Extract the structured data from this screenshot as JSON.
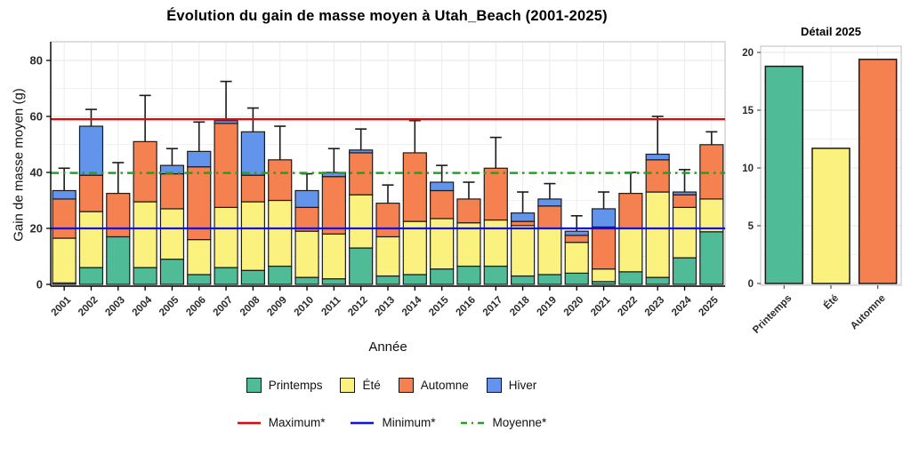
{
  "main": {
    "title": "Évolution du gain de masse moyen à Utah_Beach (2001-2025)",
    "x_label": "Année",
    "y_label": "Gain de masse moyen (g)"
  },
  "detail": {
    "title": "Détail 2025"
  },
  "legend": {
    "seasons": [
      {
        "label": "Printemps",
        "color": "#4FBB97"
      },
      {
        "label": "Été",
        "color": "#FBF17E"
      },
      {
        "label": "Automne",
        "color": "#F4814F"
      },
      {
        "label": "Hiver",
        "color": "#6394EB"
      }
    ],
    "lines": [
      {
        "label": "Maximum*",
        "color": "#F40000",
        "dash": ""
      },
      {
        "label": "Minimum*",
        "color": "#0F0FEF",
        "dash": ""
      },
      {
        "label": "Moyenne*",
        "color": "#1FA41F",
        "dash": "7 5 2 5"
      }
    ]
  },
  "chart_data": [
    {
      "type": "bar",
      "stacked": true,
      "title": "Évolution du gain de masse moyen à Utah_Beach (2001-2025)",
      "xlabel": "Année",
      "ylabel": "Gain de masse moyen (g)",
      "ylim": [
        0,
        87
      ],
      "yticks": [
        0,
        20,
        40,
        60,
        80
      ],
      "yticks_minor": [
        10,
        30,
        50,
        70
      ],
      "categories": [
        "2001",
        "2002",
        "2003",
        "2004",
        "2005",
        "2006",
        "2007",
        "2008",
        "2009",
        "2010",
        "2011",
        "2012",
        "2013",
        "2014",
        "2015",
        "2016",
        "2017",
        "2018",
        "2019",
        "2020",
        "2021",
        "2022",
        "2023",
        "2024",
        "2025"
      ],
      "series": [
        {
          "name": "Printemps",
          "color": "#4FBB97",
          "values": [
            0.5,
            6,
            17,
            6,
            9,
            3.5,
            6,
            5,
            6.5,
            2.5,
            2,
            13,
            3,
            3.5,
            5.5,
            6.5,
            6.5,
            3,
            3.5,
            4,
            1,
            4.5,
            2.5,
            9.5,
            18.8
          ]
        },
        {
          "name": "Été",
          "color": "#FBF17E",
          "values": [
            16,
            20,
            0,
            23.5,
            18,
            12.5,
            21.5,
            24.5,
            23.5,
            16.5,
            16,
            19,
            14,
            19,
            18,
            15.5,
            16.5,
            18,
            16.5,
            11,
            4.5,
            15.5,
            30.5,
            18,
            11.7
          ]
        },
        {
          "name": "Automne",
          "color": "#F4814F",
          "values": [
            14,
            13,
            15.5,
            21.5,
            12.5,
            26,
            30,
            9.5,
            14.5,
            8.5,
            20.5,
            15,
            12,
            24.5,
            10,
            8.5,
            18.5,
            1.5,
            8,
            2.5,
            15,
            12.5,
            11.5,
            4.5,
            19.4
          ]
        },
        {
          "name": "Hiver",
          "color": "#6394EB",
          "values": [
            3,
            17.5,
            0,
            0,
            3,
            5.5,
            1,
            15.5,
            0,
            6,
            1.5,
            1,
            0,
            0,
            3,
            0,
            0,
            3,
            2.5,
            1.5,
            6.5,
            0,
            2,
            1,
            0
          ]
        }
      ],
      "error_top": [
        41.5,
        62.5,
        43.5,
        67.5,
        48.5,
        58,
        72.5,
        63,
        56.5,
        39.5,
        48.5,
        55.5,
        35.5,
        58.5,
        42.5,
        36.5,
        52.5,
        33,
        36,
        24.5,
        33,
        40,
        60,
        41,
        54.5
      ],
      "ref_lines": [
        {
          "name": "Maximum*",
          "value": 59,
          "color": "#F40000",
          "dash": ""
        },
        {
          "name": "Minimum*",
          "value": 20,
          "color": "#0F0FEF",
          "dash": ""
        },
        {
          "name": "Moyenne*",
          "value": 39.8,
          "color": "#1FA41F",
          "dash": "9 5 2.5 5"
        }
      ],
      "legend_position": "bottom",
      "grid": true
    },
    {
      "type": "bar",
      "title": "Détail 2025",
      "categories": [
        "Printemps",
        "Été",
        "Automne"
      ],
      "values": [
        18.8,
        11.7,
        19.4
      ],
      "colors": [
        "#4FBB97",
        "#FBF17E",
        "#F4814F"
      ],
      "ylim": [
        0,
        20
      ],
      "yticks": [
        0,
        5,
        10,
        15,
        20
      ],
      "yticks_minor": [
        2.5,
        7.5,
        12.5,
        17.5
      ],
      "grid": true
    }
  ]
}
